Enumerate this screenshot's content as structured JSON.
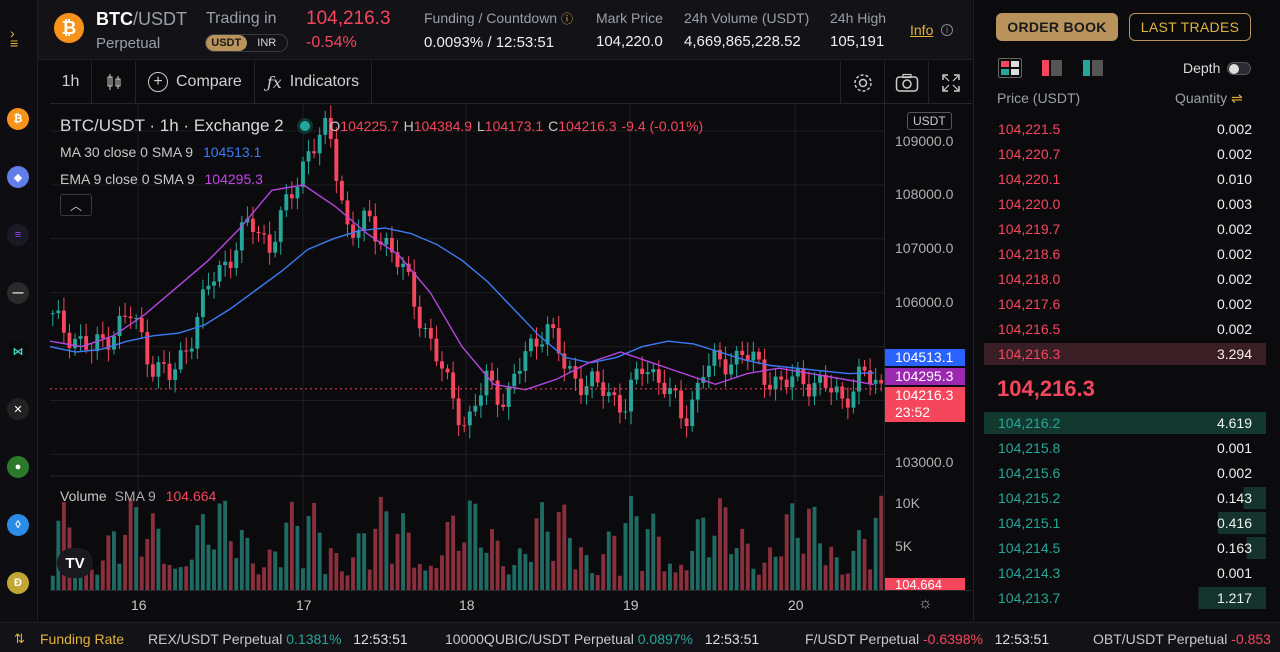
{
  "header": {
    "pair_base": "BTC",
    "pair_quote": "/USDT",
    "contract": "Perpetual",
    "trading_in": "Trading in",
    "currency_options": [
      "USDT",
      "INR"
    ],
    "last_price": "104,216.3",
    "change": "-0.54%",
    "funding_label": "Funding / Countdown",
    "funding_value": "0.0093% / 12:53:51",
    "mark_label": "Mark Price",
    "mark_value": "104,220.0",
    "volume_label": "24h Volume (USDT)",
    "volume_value": "4,669,865,228.52",
    "high_label": "24h High",
    "high_value": "105,191",
    "info": "Info"
  },
  "toolbar": {
    "interval": "1h",
    "compare": "Compare",
    "indicators": "Indicators"
  },
  "chart": {
    "symbol_line": "BTC/USDT · 1h · Exchange 2",
    "ohlc": {
      "o": "104225.7",
      "h": "104384.9",
      "l": "104173.1",
      "c": "104216.3",
      "chg": "-9.4 (-0.01%)"
    },
    "ma_label": "MA 30 close 0 SMA 9",
    "ma_value": "104513.1",
    "ema_label": "EMA 9 close 0 SMA 9",
    "ema_value": "104295.3",
    "volume_label": "Volume",
    "volume_sma": "SMA 9",
    "volume_value": "104.664",
    "currency_tag": "USDT",
    "price_ticks": [
      "109000.0",
      "108000.0",
      "107000.0",
      "106000.0",
      "103000.0"
    ],
    "volume_ticks": [
      "10K",
      "5K"
    ],
    "badges": {
      "ma": "104513.1",
      "ema": "104295.3",
      "last": "104216.3",
      "countdown": "23:52",
      "vol": "104.664"
    },
    "time_ticks": [
      "16",
      "17",
      "18",
      "19",
      "20"
    ],
    "colors": {
      "up": "#26a69a",
      "down": "#f6465d",
      "ma": "#2962ff",
      "ema": "#9c27b0"
    }
  },
  "chart_data": {
    "type": "candlestick",
    "title": "BTC/USDT · 1h · Exchange 2",
    "xlabel": "",
    "ylabel": "",
    "ylim": [
      102600,
      109500
    ],
    "x_ticks": [
      "16",
      "17",
      "18",
      "19",
      "20"
    ],
    "series": [
      {
        "name": "Price",
        "close": [
          105500,
          105200,
          104900,
          105300,
          105600,
          104700,
          104400,
          105200,
          106200,
          106700,
          107300,
          106900,
          107700,
          108700,
          109000,
          107100,
          107300,
          106900,
          106200,
          105200,
          104300,
          103500,
          104400,
          104000,
          104900,
          105400,
          104600,
          104300,
          104200,
          103900,
          104700,
          104300,
          103600,
          104600,
          104700,
          104900,
          104500,
          104300,
          104400,
          104300,
          104000,
          104500,
          104216
        ]
      },
      {
        "name": "MA 30 close 0 SMA 9",
        "values": [
          105000,
          104900,
          104950,
          105100,
          105200,
          105250,
          105400,
          105700,
          106050,
          106400,
          106800,
          107000,
          107150,
          107200,
          107100,
          106900,
          106600,
          106200,
          105700,
          105200,
          104800,
          104700,
          104800,
          105000,
          105100,
          105050,
          104900,
          104750,
          104650,
          104600,
          104550,
          104500,
          104513
        ]
      },
      {
        "name": "EMA 9 close 0 SMA 9",
        "values": [
          105100,
          105000,
          105200,
          105600,
          106100,
          106600,
          107200,
          107900,
          108000,
          107600,
          107100,
          106700,
          106000,
          105000,
          104300,
          104200,
          104400,
          104700,
          104900,
          104700,
          104500,
          104300,
          104500,
          104600,
          104500,
          104400,
          104295
        ]
      }
    ],
    "volume_ticks": [
      "10K",
      "5K"
    ],
    "volume_sma": "104.664"
  },
  "orderbook": {
    "tab_book": "ORDER BOOK",
    "tab_trades": "LAST TRADES",
    "depth": "Depth",
    "price_header": "Price (USDT)",
    "qty_header": "Quantity",
    "asks": [
      {
        "price": "104,221.5",
        "qty": "0.002"
      },
      {
        "price": "104,220.7",
        "qty": "0.002"
      },
      {
        "price": "104,220.1",
        "qty": "0.010"
      },
      {
        "price": "104,220.0",
        "qty": "0.003"
      },
      {
        "price": "104,219.7",
        "qty": "0.002"
      },
      {
        "price": "104,218.6",
        "qty": "0.002"
      },
      {
        "price": "104,218.0",
        "qty": "0.002"
      },
      {
        "price": "104,217.6",
        "qty": "0.002"
      },
      {
        "price": "104,216.5",
        "qty": "0.002"
      },
      {
        "price": "104,216.3",
        "qty": "3.294"
      }
    ],
    "mid_price": "104,216.3",
    "bids": [
      {
        "price": "104,216.2",
        "qty": "4.619"
      },
      {
        "price": "104,215.8",
        "qty": "0.001"
      },
      {
        "price": "104,215.6",
        "qty": "0.002"
      },
      {
        "price": "104,215.2",
        "qty": "0.143"
      },
      {
        "price": "104,215.1",
        "qty": "0.416"
      },
      {
        "price": "104,214.5",
        "qty": "0.163"
      },
      {
        "price": "104,214.3",
        "qty": "0.001"
      },
      {
        "price": "104,213.7",
        "qty": "1.217"
      }
    ]
  },
  "ticker": {
    "label": "Funding Rate",
    "items": [
      {
        "symbol": "REX/USDT Perpetual",
        "rate": "0.1381%",
        "time": "12:53:51"
      },
      {
        "symbol": "10000QUBIC/USDT Perpetual",
        "rate": "0.0897%",
        "time": "12:53:51"
      },
      {
        "symbol": "F/USDT Perpetual",
        "rate": "-0.6398%",
        "time": "12:53:51"
      },
      {
        "symbol": "OBT/USDT Perpetual",
        "rate": "-0.853",
        "time": ""
      }
    ]
  }
}
